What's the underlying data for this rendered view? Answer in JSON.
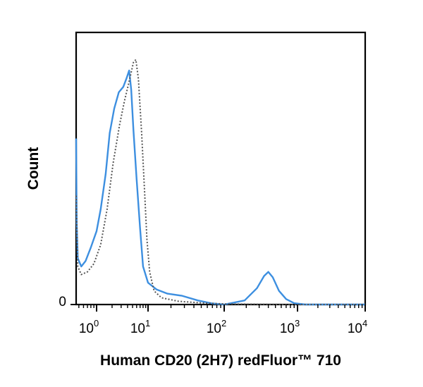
{
  "chart_data": {
    "type": "line",
    "title": "",
    "xlabel": "Human CD20 (2H7) redFluor™ 710",
    "ylabel": "Count",
    "x_scale": "biexponential",
    "x_ticks": [
      {
        "value": 1,
        "base": "10",
        "exp": "0"
      },
      {
        "value": 10,
        "base": "10",
        "exp": "1"
      },
      {
        "value": 100,
        "base": "10",
        "exp": "2"
      },
      {
        "value": 1000,
        "base": "10",
        "exp": "3"
      },
      {
        "value": 10000,
        "base": "10",
        "exp": "4"
      }
    ],
    "y_ticks": [
      {
        "value": 0,
        "label": "0"
      }
    ],
    "ylim": [
      0,
      100
    ],
    "grid": false,
    "legend": "none",
    "series": [
      {
        "style": "solid",
        "color": "#3d8fe0",
        "points": [
          [
            0.45,
            61
          ],
          [
            0.46,
            30
          ],
          [
            0.48,
            17
          ],
          [
            0.55,
            14
          ],
          [
            0.65,
            16
          ],
          [
            0.8,
            21
          ],
          [
            1.0,
            27
          ],
          [
            1.2,
            35
          ],
          [
            1.5,
            48
          ],
          [
            1.8,
            63
          ],
          [
            2.2,
            72
          ],
          [
            2.7,
            78
          ],
          [
            3.3,
            80
          ],
          [
            3.8,
            83
          ],
          [
            4.3,
            86
          ],
          [
            4.7,
            79
          ],
          [
            5.2,
            64
          ],
          [
            6.0,
            46
          ],
          [
            7.0,
            28
          ],
          [
            8.0,
            14
          ],
          [
            10,
            8
          ],
          [
            13,
            5.5
          ],
          [
            18,
            4
          ],
          [
            28,
            3.2
          ],
          [
            45,
            1.5
          ],
          [
            70,
            0.4
          ],
          [
            100,
            0
          ],
          [
            190,
            1.5
          ],
          [
            280,
            6
          ],
          [
            350,
            10.5
          ],
          [
            400,
            12
          ],
          [
            460,
            10
          ],
          [
            560,
            5
          ],
          [
            700,
            2
          ],
          [
            900,
            0.5
          ],
          [
            1300,
            0
          ],
          [
            10000,
            0
          ]
        ]
      },
      {
        "style": "dotted",
        "color": "#555555",
        "points": [
          [
            0.45,
            40
          ],
          [
            0.48,
            14
          ],
          [
            0.55,
            11
          ],
          [
            0.7,
            12
          ],
          [
            0.9,
            15
          ],
          [
            1.2,
            22
          ],
          [
            1.6,
            35
          ],
          [
            2.1,
            52
          ],
          [
            2.8,
            66
          ],
          [
            3.5,
            75
          ],
          [
            4.3,
            82
          ],
          [
            5.2,
            89
          ],
          [
            5.8,
            90
          ],
          [
            6.5,
            83
          ],
          [
            7.5,
            63
          ],
          [
            8.5,
            43
          ],
          [
            9.5,
            24
          ],
          [
            10.5,
            12
          ],
          [
            12,
            5
          ],
          [
            15,
            2.5
          ],
          [
            25,
            1.2
          ],
          [
            50,
            0.6
          ],
          [
            100,
            0.2
          ],
          [
            300,
            0.1
          ],
          [
            1000,
            0
          ],
          [
            10000,
            0
          ]
        ]
      }
    ]
  }
}
